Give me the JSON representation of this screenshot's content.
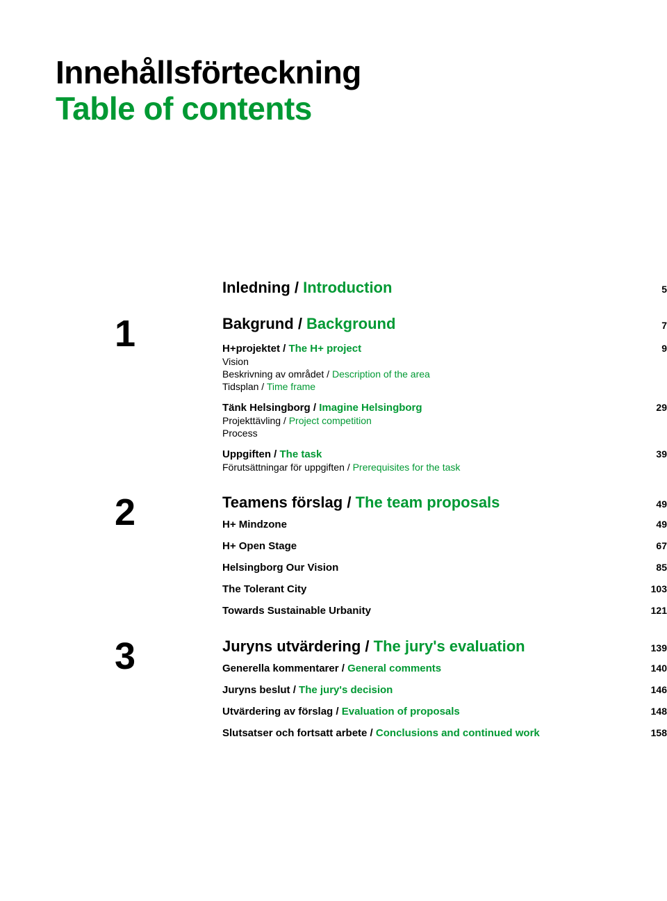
{
  "colors": {
    "accent": "#009933",
    "text": "#000000",
    "background": "#ffffff"
  },
  "title": {
    "sv": "Innehållsförteckning",
    "en": "Table of contents"
  },
  "intro": {
    "sv": "Inledning",
    "en": "Introduction",
    "page": "5"
  },
  "sections": [
    {
      "num": "1",
      "heading": {
        "sv": "Bakgrund",
        "en": "Background",
        "page": "7"
      },
      "groups": [
        {
          "head": {
            "sv": "H+projektet",
            "en": "The H+ project",
            "page": "9"
          },
          "subs": [
            {
              "sv": "Vision",
              "en": ""
            },
            {
              "sv": "Beskrivning av området",
              "en": "Description of the area"
            },
            {
              "sv": "Tidsplan",
              "en": "Time frame"
            }
          ]
        },
        {
          "head": {
            "sv": "Tänk Helsingborg",
            "en": "Imagine Helsingborg",
            "page": "29"
          },
          "subs": [
            {
              "sv": "Projekttävling",
              "en": "Project competition"
            },
            {
              "sv": "Process",
              "en": ""
            }
          ]
        },
        {
          "head": {
            "sv": "Uppgiften",
            "en": "The task",
            "page": "39"
          },
          "subs": [
            {
              "sv": "Förutsättningar för uppgiften",
              "en": "Prerequisites for the task"
            }
          ]
        }
      ]
    },
    {
      "num": "2",
      "heading": {
        "sv": "Teamens förslag",
        "en": "The team proposals",
        "page": "49"
      },
      "items": [
        {
          "label": "H+ Mindzone",
          "page": "49"
        },
        {
          "label": "H+ Open Stage",
          "page": "67"
        },
        {
          "label": "Helsingborg Our Vision",
          "page": "85"
        },
        {
          "label": "The Tolerant City",
          "page": "103"
        },
        {
          "label": "Towards Sustainable Urbanity",
          "page": "121"
        }
      ]
    },
    {
      "num": "3",
      "heading": {
        "sv": "Juryns utvärdering",
        "en": "The jury's evaluation",
        "page": "139"
      },
      "items2": [
        {
          "sv": "Generella kommentarer",
          "en": "General comments",
          "page": "140"
        },
        {
          "sv": "Juryns beslut",
          "en": "The jury's decision",
          "page": "146"
        },
        {
          "sv": "Utvärdering av förslag",
          "en": "Evaluation of proposals",
          "page": "148"
        },
        {
          "sv": "Slutsatser och fortsatt arbete",
          "en": "Conclusions and continued work",
          "page": "158"
        }
      ]
    }
  ]
}
